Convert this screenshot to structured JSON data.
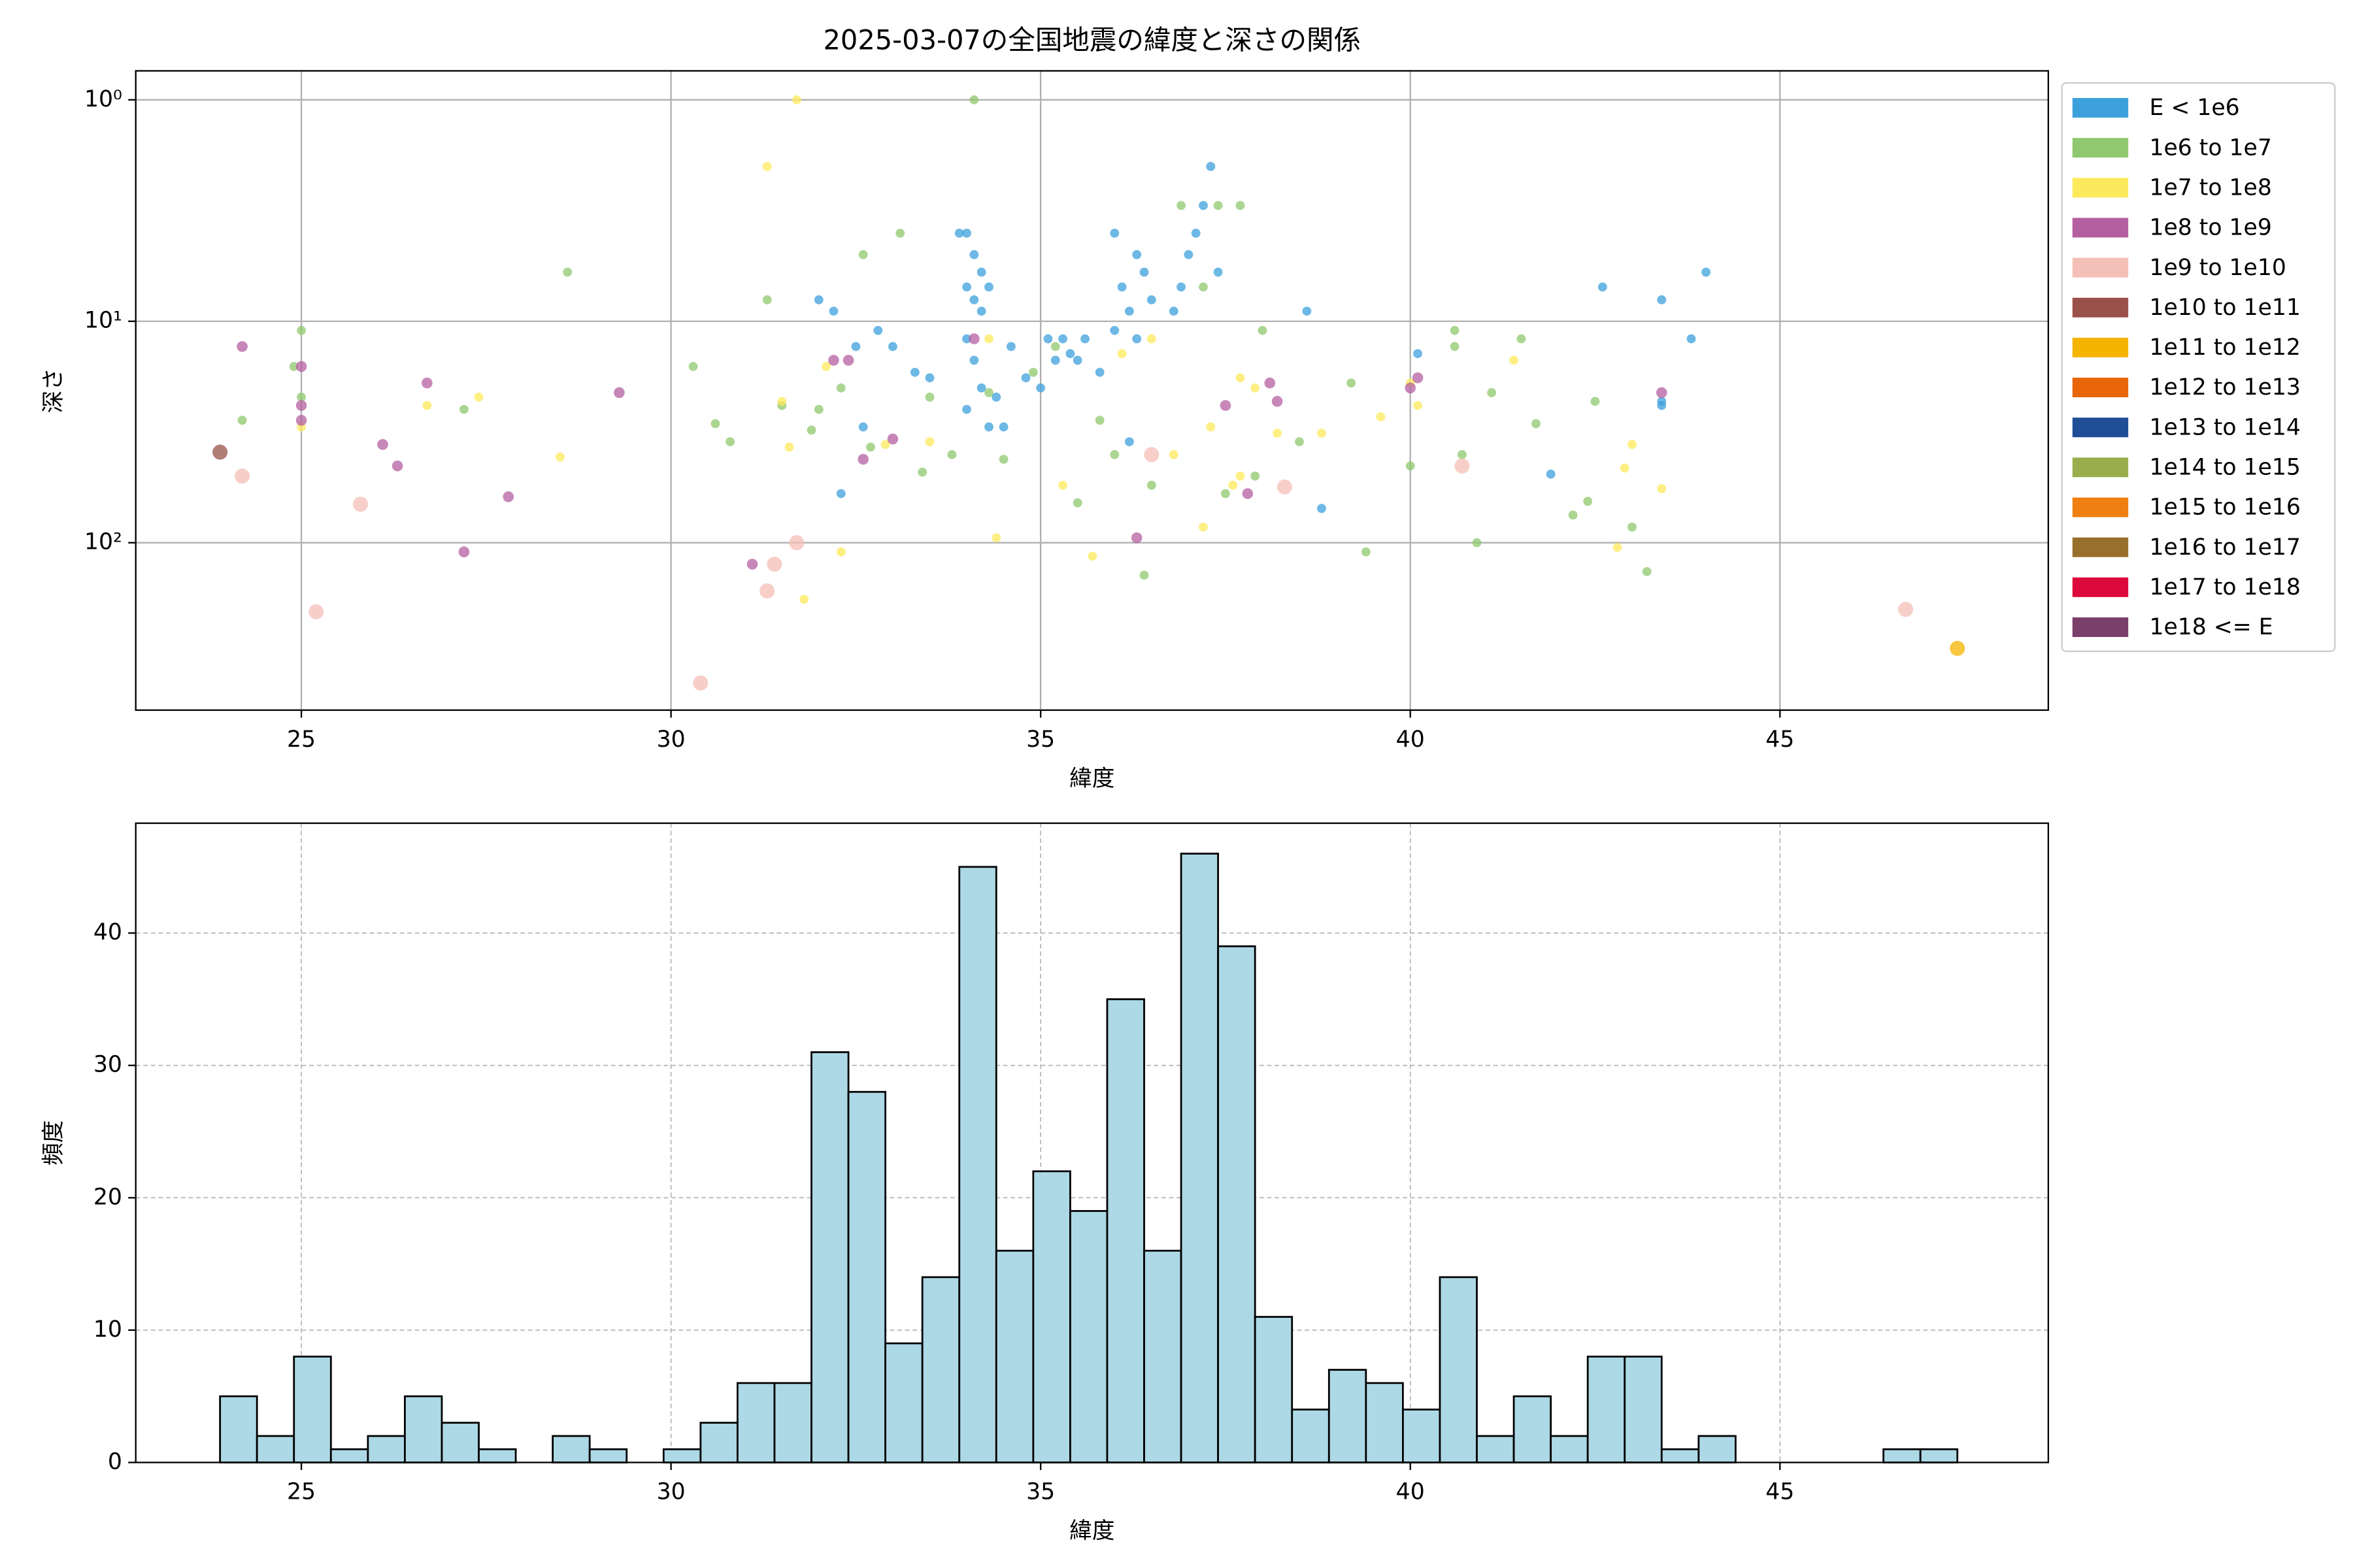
{
  "chart_data": [
    {
      "type": "scatter",
      "title": "2025-03-07の全国地震の緯度と深さの関係",
      "x_label": "緯度",
      "y_label": "深さ",
      "xlim": [
        22.76,
        48.63
      ],
      "xticks": [
        25,
        30,
        35,
        40,
        45
      ],
      "ylim": [
        0.74,
        570
      ],
      "log_y": true,
      "y_inverted": true,
      "yticks": [
        {
          "value": 1,
          "label": "10⁰"
        },
        {
          "value": 10,
          "label": "10¹"
        },
        {
          "value": 100,
          "label": "10²"
        }
      ],
      "grid": true,
      "legend": "outside upper right",
      "series": [
        {
          "name": "E < 1e6",
          "color": "#3ca0dc",
          "x": [
            32.6,
            32.3,
            32.0,
            32.2,
            32.5,
            33.0,
            32.8,
            33.5,
            33.9,
            34.0,
            34.1,
            34.2,
            34.0,
            34.1,
            34.2,
            34.3,
            34.0,
            34.1,
            34.2,
            34.3,
            34.0,
            34.4,
            34.6,
            35.0,
            35.2,
            35.4,
            35.6,
            35.8,
            36.0,
            36.1,
            36.2,
            36.3,
            36.4,
            36.0,
            36.5,
            36.3,
            36.8,
            37.0,
            37.1,
            37.2,
            37.3,
            36.9,
            37.4,
            35.5,
            34.8,
            35.1,
            33.3,
            38.6,
            38.8,
            40.1,
            41.9,
            42.6,
            43.4,
            43.4,
            43.4,
            43.8,
            44.0,
            36.2,
            35.3,
            34.5
          ],
          "values": [
            30,
            60,
            8,
            9,
            13,
            13,
            11,
            18,
            4,
            4,
            5,
            6,
            7,
            8,
            9,
            7,
            12,
            15,
            20,
            30,
            25,
            22,
            13,
            20,
            15,
            14,
            12,
            17,
            4,
            7,
            9,
            5,
            6,
            11,
            8,
            12,
            9,
            5,
            4,
            3,
            2,
            7,
            6,
            15,
            18,
            12,
            17,
            9,
            70,
            14,
            49,
            7,
            8,
            23,
            24,
            12,
            6,
            35,
            12,
            30
          ]
        },
        {
          "name": "1e6 to 1e7",
          "color": "#8fc86e",
          "x": [
            24.2,
            24.9,
            25.0,
            25.0,
            27.2,
            28.6,
            30.3,
            30.6,
            30.8,
            31.3,
            31.5,
            31.9,
            32.0,
            32.3,
            32.6,
            32.7,
            33.1,
            33.4,
            33.5,
            33.8,
            34.3,
            34.5,
            34.9,
            35.2,
            35.5,
            35.8,
            36.0,
            36.4,
            36.5,
            36.9,
            37.2,
            37.4,
            37.7,
            37.9,
            38.0,
            38.5,
            39.2,
            39.4,
            40.0,
            40.6,
            40.6,
            40.7,
            40.9,
            41.1,
            41.5,
            41.7,
            42.2,
            42.5,
            42.4,
            43.0,
            43.2,
            34.1,
            37.5
          ],
          "values": [
            28,
            16,
            11,
            22,
            25,
            6,
            16,
            29,
            35,
            8,
            24,
            31,
            25,
            20,
            5,
            37,
            4,
            48,
            22,
            40,
            21,
            42,
            17,
            13,
            66,
            28,
            40,
            140,
            55,
            3,
            7,
            3,
            3,
            50,
            11,
            35,
            19,
            110,
            45,
            11,
            13,
            40,
            100,
            21,
            12,
            29,
            75,
            23,
            65,
            85,
            135,
            1,
            60
          ]
        },
        {
          "name": "1e7 to 1e8",
          "color": "#fde95c",
          "x": [
            25.0,
            26.7,
            27.4,
            28.5,
            31.3,
            31.7,
            31.6,
            31.5,
            32.1,
            32.3,
            31.8,
            32.9,
            33.5,
            34.3,
            34.4,
            35.3,
            35.7,
            36.1,
            36.5,
            37.2,
            37.3,
            37.6,
            37.7,
            37.9,
            38.2,
            38.8,
            39.6,
            40.1,
            40.0,
            41.4,
            42.9,
            43.0,
            43.4,
            42.8,
            37.7,
            36.8
          ],
          "values": [
            30,
            24,
            22,
            41,
            2,
            1,
            37,
            23,
            16,
            110,
            180,
            36,
            35,
            12,
            95,
            55,
            115,
            14,
            12,
            85,
            30,
            55,
            18,
            20,
            32,
            32,
            27,
            24,
            19,
            15,
            46,
            36,
            57,
            105,
            50,
            40
          ]
        },
        {
          "name": "1e8 to 1e9",
          "color": "#b45fa0",
          "x": [
            24.2,
            25.0,
            25.0,
            25.0,
            26.1,
            26.3,
            26.7,
            27.2,
            27.8,
            29.3,
            31.1,
            32.2,
            32.4,
            32.6,
            33.0,
            34.1,
            36.3,
            37.5,
            37.8,
            38.1,
            38.2,
            40.1,
            40.0,
            43.4
          ],
          "values": [
            13,
            16,
            24,
            28,
            36,
            45,
            19,
            110,
            62,
            21,
            125,
            15,
            15,
            42,
            34,
            12,
            95,
            24,
            60,
            19,
            23,
            18,
            20,
            21
          ]
        },
        {
          "name": "1e9 to 1e10",
          "color": "#f4bfb6",
          "x": [
            24.2,
            25.2,
            25.8,
            30.4,
            31.3,
            31.4,
            31.7,
            36.5,
            38.3,
            40.7,
            46.7
          ],
          "values": [
            50,
            205,
            67,
            430,
            165,
            125,
            100,
            40,
            56,
            45,
            200
          ]
        },
        {
          "name": "1e10 to 1e11",
          "color": "#9a5149",
          "x": [
            23.9
          ],
          "values": [
            39
          ]
        },
        {
          "name": "1e11 to 1e12",
          "color": "#f5b400",
          "x": [
            47.4
          ],
          "values": [
            300
          ]
        },
        {
          "name": "1e12 to 1e13",
          "color": "#e8650a",
          "x": [],
          "values": []
        },
        {
          "name": "1e13 to 1e14",
          "color": "#1f4e96",
          "x": [],
          "values": []
        },
        {
          "name": "1e14 to 1e15",
          "color": "#9aad4d",
          "x": [],
          "values": []
        },
        {
          "name": "1e15 to 1e16",
          "color": "#ef7f10",
          "x": [],
          "values": []
        },
        {
          "name": "1e16 to 1e17",
          "color": "#98702b",
          "x": [],
          "values": []
        },
        {
          "name": "1e17 to 1e18",
          "color": "#dc0a3a",
          "x": [],
          "values": []
        },
        {
          "name": "1e18 <= E",
          "color": "#7a3f6b",
          "x": [],
          "values": []
        }
      ]
    },
    {
      "type": "histogram",
      "x_label": "緯度",
      "y_label": "頻度",
      "xlim": [
        22.76,
        48.63
      ],
      "xticks": [
        25,
        30,
        35,
        40,
        45
      ],
      "ylim": [
        0,
        48.3
      ],
      "yticks": [
        0,
        10,
        20,
        30,
        40
      ],
      "grid": true,
      "grid_style": "dashed",
      "color": "#add8e6",
      "edgecolor": "#000000",
      "bins": [
        23.9,
        24.4,
        24.9,
        25.4,
        25.9,
        26.4,
        26.9,
        27.4,
        27.9,
        28.4,
        28.9,
        29.4,
        29.9,
        30.4,
        30.9,
        31.4,
        31.9,
        32.4,
        32.9,
        33.4,
        33.9,
        34.4,
        34.9,
        35.4,
        35.9,
        36.4,
        36.9,
        37.4,
        37.9,
        38.4,
        38.9,
        39.4,
        39.9,
        40.4,
        40.9,
        41.4,
        41.9,
        42.4,
        42.9,
        43.4,
        43.9,
        44.4,
        44.9,
        45.4,
        45.9,
        46.4,
        46.9,
        47.4
      ],
      "values": [
        5,
        2,
        8,
        1,
        2,
        5,
        3,
        1,
        0,
        2,
        1,
        0,
        1,
        3,
        6,
        6,
        31,
        28,
        9,
        14,
        45,
        16,
        22,
        19,
        35,
        16,
        46,
        39,
        11,
        4,
        7,
        6,
        4,
        14,
        2,
        5,
        2,
        8,
        8,
        1,
        2,
        0,
        0,
        0,
        0,
        1,
        1
      ]
    }
  ]
}
